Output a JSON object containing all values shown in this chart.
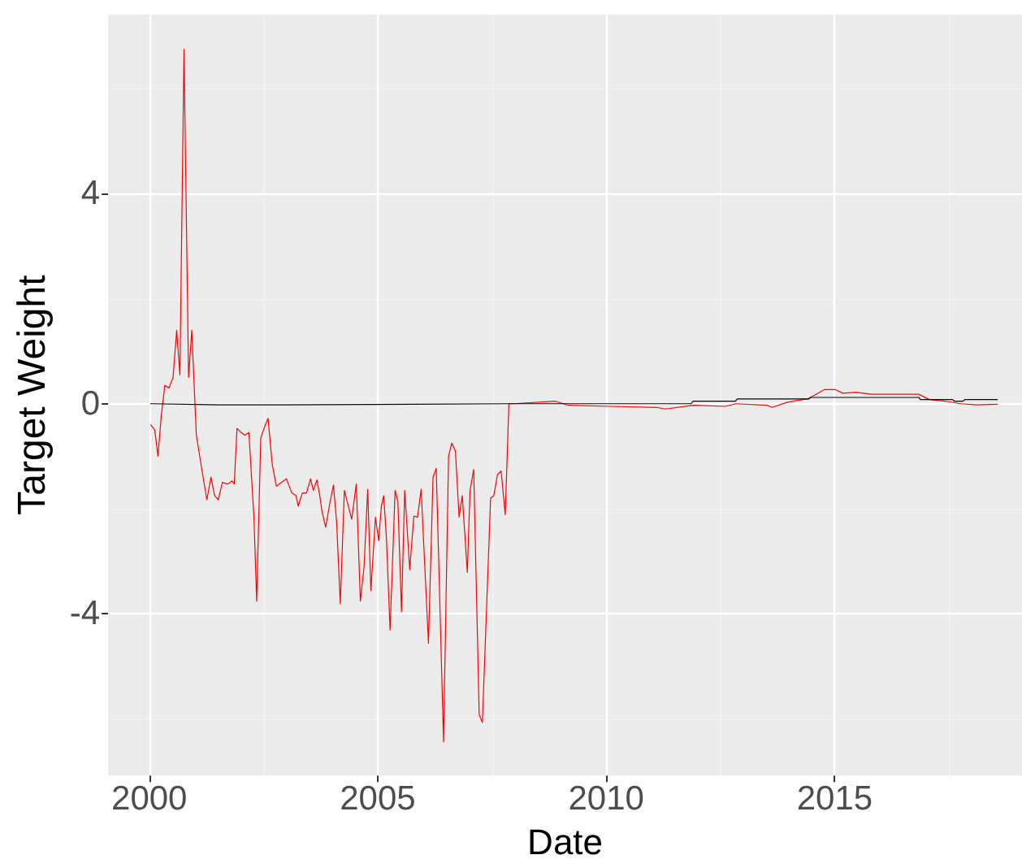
{
  "chart_data": {
    "type": "line",
    "xlabel": "Date",
    "ylabel": "Target Weight",
    "xlim": [
      1999.1,
      2019.1
    ],
    "xticks": [
      2000,
      2005,
      2010,
      2015
    ],
    "ylim": [
      -7.08,
      7.41
    ],
    "yticks": [
      -4,
      0,
      4
    ],
    "grid": true,
    "series": [
      {
        "color": "#ff0000",
        "x": [
          2000.03,
          2000.12,
          2000.19,
          2000.26,
          2000.34,
          2000.43,
          2000.52,
          2000.6,
          2000.67,
          2000.76,
          2000.86,
          2000.93,
          2001.03,
          2001.15,
          2001.26,
          2001.35,
          2001.43,
          2001.51,
          2001.6,
          2001.72,
          2001.81,
          2001.86,
          2001.92,
          2002.01,
          2002.09,
          2002.18,
          2002.29,
          2002.35,
          2002.44,
          2002.52,
          2002.6,
          2002.69,
          2002.78,
          2002.89,
          2003.0,
          2003.12,
          2003.21,
          2003.26,
          2003.35,
          2003.44,
          2003.53,
          2003.59,
          2003.67,
          2003.73,
          2003.78,
          2003.86,
          2003.95,
          2004.03,
          2004.1,
          2004.18,
          2004.27,
          2004.35,
          2004.43,
          2004.53,
          2004.62,
          2004.7,
          2004.78,
          2004.85,
          2004.95,
          2005.02,
          2005.08,
          2005.13,
          2005.19,
          2005.27,
          2005.38,
          2005.44,
          2005.52,
          2005.59,
          2005.7,
          2005.79,
          2005.87,
          2005.95,
          2006.0,
          2006.11,
          2006.21,
          2006.28,
          2006.44,
          2006.55,
          2006.62,
          2006.7,
          2006.78,
          2006.85,
          2006.96,
          2007.02,
          2007.1,
          2007.22,
          2007.29,
          2007.47,
          2007.54,
          2007.62,
          2007.7,
          2007.79,
          2007.82,
          2007.87,
          2007.96,
          2008.88,
          2009.17,
          2010.08,
          2011.11,
          2011.29,
          2011.91,
          2012.6,
          2012.83,
          2013.52,
          2013.63,
          2013.97,
          2014.43,
          2014.78,
          2015.01,
          2015.18,
          2015.46,
          2015.81,
          2016.84,
          2017.07,
          2017.41,
          2017.76,
          2018.1,
          2018.56
        ],
        "values": [
          -0.4,
          -0.5,
          -1.0,
          -0.25,
          0.35,
          0.3,
          0.5,
          1.4,
          0.55,
          6.75,
          0.5,
          1.4,
          -0.6,
          -1.25,
          -1.83,
          -1.4,
          -1.75,
          -1.83,
          -1.5,
          -1.53,
          -1.47,
          -1.53,
          -0.47,
          -0.55,
          -0.6,
          -0.55,
          -2.15,
          -3.76,
          -0.65,
          -0.45,
          -0.28,
          -1.15,
          -1.57,
          -1.5,
          -1.43,
          -1.7,
          -1.75,
          -1.95,
          -1.7,
          -1.7,
          -1.43,
          -1.65,
          -1.45,
          -1.75,
          -2.05,
          -2.35,
          -1.9,
          -1.55,
          -2.25,
          -3.81,
          -1.65,
          -1.93,
          -2.2,
          -1.53,
          -3.76,
          -3.11,
          -1.63,
          -3.56,
          -2.16,
          -2.61,
          -1.95,
          -1.75,
          -2.56,
          -4.31,
          -1.65,
          -1.85,
          -3.96,
          -1.65,
          -3.16,
          -2.14,
          -2.16,
          -1.63,
          -2.56,
          -4.56,
          -1.4,
          -1.23,
          -6.44,
          -1.0,
          -0.75,
          -0.9,
          -2.16,
          -1.75,
          -3.21,
          -1.65,
          -1.25,
          -5.92,
          -6.07,
          -1.8,
          -1.75,
          -1.35,
          -1.28,
          -2.11,
          -1.35,
          0.0,
          0.0,
          0.05,
          -0.03,
          -0.05,
          -0.07,
          -0.1,
          -0.03,
          -0.05,
          0.0,
          -0.03,
          -0.07,
          0.03,
          0.1,
          0.27,
          0.27,
          0.2,
          0.22,
          0.18,
          0.18,
          0.08,
          0.05,
          0.0,
          -0.02,
          -0.01
        ]
      },
      {
        "color": "#000000",
        "x": [
          2000.03,
          2001.5,
          2003.0,
          2007.96,
          2011.86,
          2011.9,
          2012.83,
          2012.87,
          2014.43,
          2014.47,
          2016.84,
          2016.88,
          2017.58,
          2017.62,
          2017.81,
          2017.85,
          2018.56
        ],
        "values": [
          0,
          -0.02,
          -0.02,
          0,
          0,
          0.05,
          0.05,
          0.09,
          0.09,
          0.12,
          0.12,
          0.08,
          0.08,
          0.05,
          0.05,
          0.08,
          0.08
        ]
      }
    ]
  }
}
